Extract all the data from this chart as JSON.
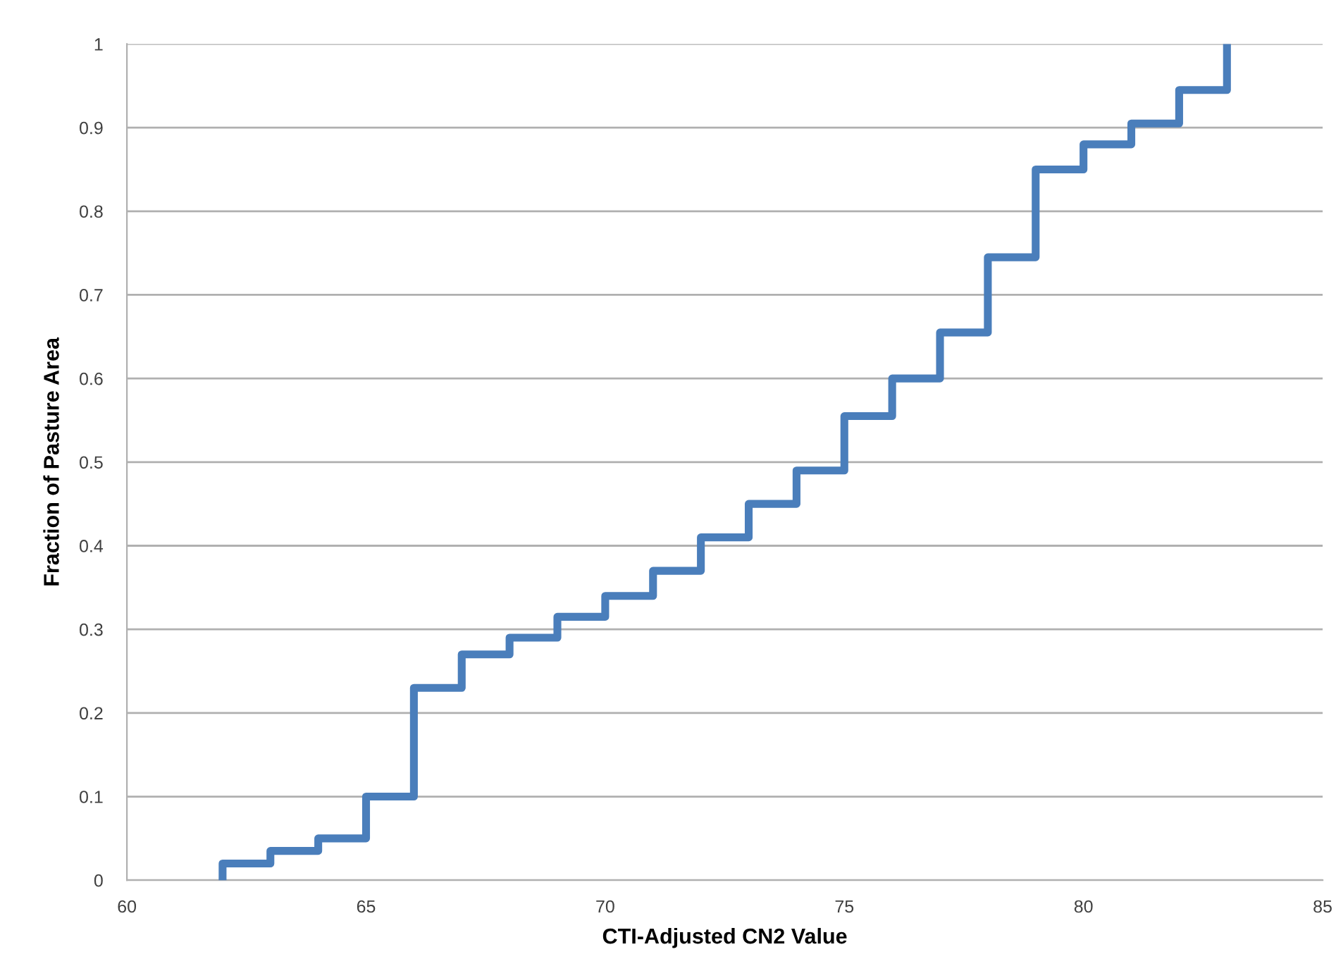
{
  "chart_data": {
    "type": "step",
    "xlabel": "CTI-Adjusted CN2 Value",
    "ylabel": "Fraction of Pasture Area",
    "x": [
      62,
      62,
      63,
      64,
      65,
      66,
      67,
      68,
      69,
      70,
      71,
      72,
      73,
      74,
      75,
      76,
      77,
      78,
      79,
      80,
      81,
      82,
      83
    ],
    "values": [
      0,
      0.02,
      0.035,
      0.05,
      0.1,
      0.23,
      0.27,
      0.29,
      0.315,
      0.34,
      0.37,
      0.41,
      0.45,
      0.49,
      0.555,
      0.6,
      0.655,
      0.745,
      0.85,
      0.88,
      0.905,
      0.945,
      1.0
    ],
    "color": "#4a7ebb",
    "xlim": [
      60,
      85
    ],
    "xticks": [
      60,
      65,
      70,
      75,
      80,
      85
    ],
    "ylim": [
      0,
      1
    ],
    "yticks": [
      0,
      {
        "value": 0.1,
        "label": "0.1"
      },
      {
        "value": 0.2,
        "label": "0.2"
      },
      {
        "value": 0.3,
        "label": "0.3"
      },
      {
        "value": 0.4,
        "label": "0.4"
      },
      {
        "value": 0.5,
        "label": "0.5"
      },
      {
        "value": 0.6,
        "label": "0.6"
      },
      {
        "value": 0.7,
        "label": "0.7"
      },
      {
        "value": 0.8,
        "label": "0.8"
      },
      {
        "value": 0.9,
        "label": "0.9"
      },
      1
    ],
    "grid": "y",
    "legend": false
  }
}
